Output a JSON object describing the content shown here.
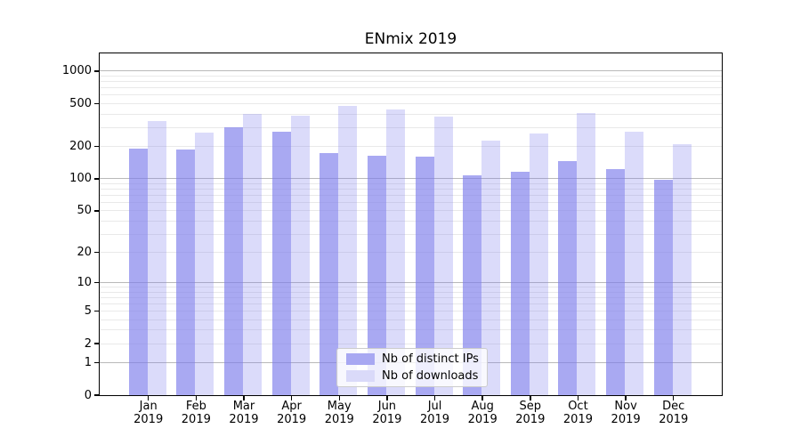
{
  "figure": {
    "title": "ENmix 2019"
  },
  "legend": {
    "items": [
      {
        "label": "Nb of distinct IPs",
        "swatch_color": "#a8a8f2"
      },
      {
        "label": "Nb of downloads",
        "swatch_color": "#dadaf9"
      }
    ]
  },
  "chart_data": {
    "type": "bar",
    "title": "ENmix 2019",
    "categories": [
      "Jan 2019",
      "Feb 2019",
      "Mar 2019",
      "Apr 2019",
      "May 2019",
      "Jun 2019",
      "Jul 2019",
      "Aug 2019",
      "Sep 2019",
      "Oct 2019",
      "Nov 2019",
      "Dec 2019"
    ],
    "series": [
      {
        "name": "Nb of distinct IPs",
        "color": "rgba(124,124,236,0.66)",
        "values": [
          190,
          189,
          300,
          275,
          175,
          165,
          160,
          108,
          116,
          145,
          124,
          97
        ]
      },
      {
        "name": "Nb of downloads",
        "color": "rgba(124,124,236,0.28)",
        "values": [
          345,
          268,
          405,
          385,
          480,
          445,
          380,
          225,
          265,
          410,
          272,
          212
        ]
      }
    ],
    "yscale": "log1p",
    "yticks": [
      0,
      1,
      2,
      5,
      10,
      20,
      50,
      100,
      200,
      500,
      1000
    ],
    "ylim": [
      0,
      1465
    ],
    "xlabel": "",
    "ylabel": "",
    "grid": true,
    "grid_major_at": [
      1,
      10,
      100,
      1000
    ],
    "legend_position": "lower center"
  }
}
